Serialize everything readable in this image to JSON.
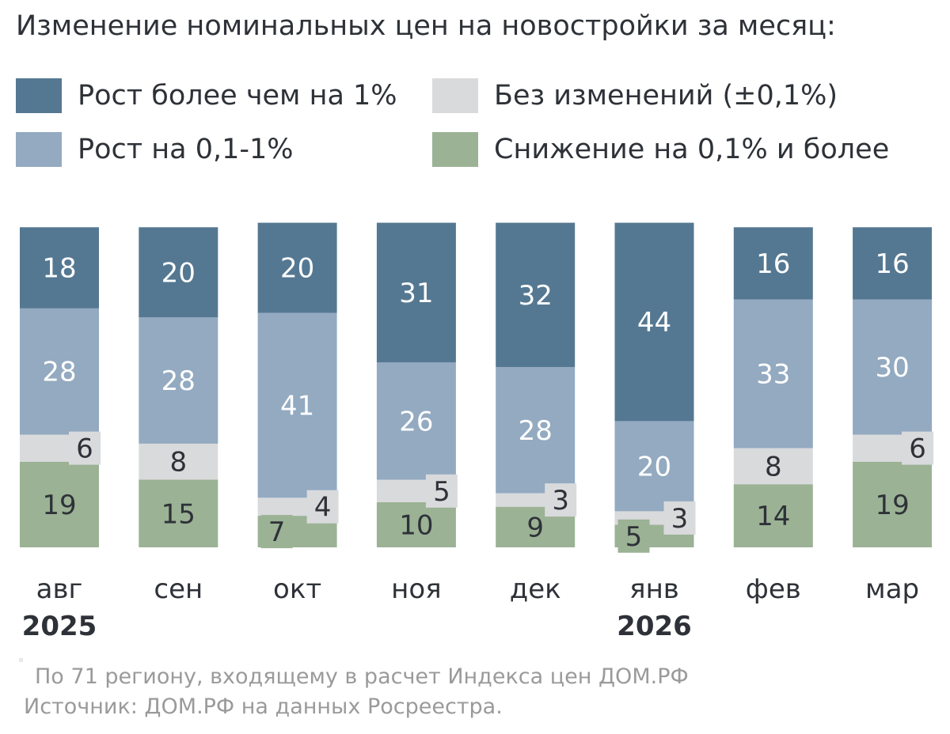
{
  "title": "Изменение номинальных цен на новостройки за месяц:",
  "legend": [
    {
      "label": "Рост более чем на 1%",
      "color": "#557892"
    },
    {
      "label": "Без изменений (±0,1%)",
      "color": "#d9dadc"
    },
    {
      "label": "Рост на 0,1-1%",
      "color": "#93aac1"
    },
    {
      "label": "Снижение на 0,1% и более",
      "color": "#9bb295"
    }
  ],
  "chart_data": {
    "type": "bar",
    "stacked": true,
    "categories": [
      "авг",
      "сен",
      "окт",
      "ноя",
      "дек",
      "янв",
      "фев",
      "мар"
    ],
    "years": [
      {
        "category": "авг",
        "label": "2025"
      },
      {
        "category": "янв",
        "label": "2026"
      }
    ],
    "series": [
      {
        "name": "Снижение на 0,1% и более",
        "color": "#9bb295",
        "values": [
          19,
          15,
          7,
          10,
          9,
          5,
          14,
          19
        ]
      },
      {
        "name": "Без изменений (±0,1%)",
        "color": "#d9dadc",
        "values": [
          6,
          8,
          4,
          5,
          3,
          3,
          8,
          6
        ]
      },
      {
        "name": "Рост на 0,1-1%",
        "color": "#93aac1",
        "values": [
          28,
          28,
          41,
          26,
          28,
          20,
          33,
          30
        ]
      },
      {
        "name": "Рост более чем на 1%",
        "color": "#557892",
        "values": [
          18,
          20,
          20,
          31,
          32,
          44,
          16,
          16
        ]
      }
    ]
  },
  "footnotes": [
    "По 71 региону, входящему в расчет Индекса цен ДОМ.РФ",
    "Источник: ДОМ.РФ на данных Росреестра."
  ]
}
